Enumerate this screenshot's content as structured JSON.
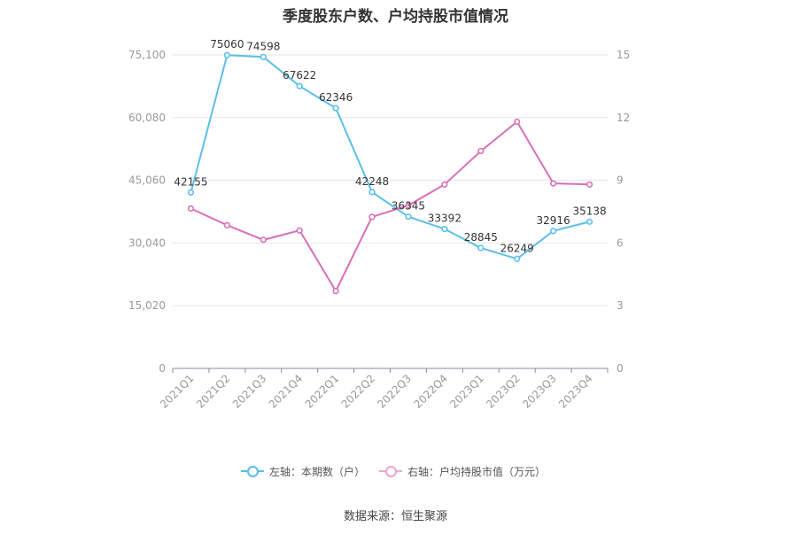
{
  "title": "季度股东户数、户均持股市值情况",
  "source": "数据来源：恒生聚源",
  "colors": {
    "left_series": "#5bbfe9",
    "right_series": "#d870b7",
    "axis": "#8a8aa0",
    "grid": "#e6e6e6",
    "tick_text": "#999999",
    "label_text": "#333333"
  },
  "chart_data": {
    "type": "line",
    "categories": [
      "2021Q1",
      "2021Q2",
      "2021Q3",
      "2021Q4",
      "2022Q1",
      "2022Q2",
      "2022Q3",
      "2022Q4",
      "2023Q1",
      "2023Q2",
      "2023Q3",
      "2023Q4"
    ],
    "left_axis": {
      "ticks": [
        0,
        15020,
        30040,
        45060,
        60080,
        75100
      ],
      "tick_labels": [
        "0",
        "15,020",
        "30,040",
        "45,060",
        "60,080",
        "75,100"
      ],
      "ylim": [
        0,
        75100
      ]
    },
    "right_axis": {
      "ticks": [
        0,
        3,
        6,
        9,
        12,
        15
      ],
      "tick_labels": [
        "0",
        "3",
        "6",
        "9",
        "12",
        "15"
      ],
      "ylim": [
        0,
        15
      ]
    },
    "series": [
      {
        "name": "左轴：本期数（户）",
        "axis": "left",
        "values": [
          42155,
          75060,
          74598,
          67622,
          62346,
          42248,
          36345,
          33392,
          28845,
          26249,
          32916,
          35138
        ],
        "data_labels": [
          "42155",
          "75060",
          "74598",
          "67622",
          "62346",
          "42248",
          "36345",
          "33392",
          "28845",
          "26249",
          "32916",
          "35138"
        ]
      },
      {
        "name": "右轴：户均持股市值（万元）",
        "axis": "right",
        "values": [
          7.65,
          6.85,
          6.15,
          6.6,
          3.7,
          7.25,
          7.8,
          8.8,
          10.4,
          11.8,
          8.85,
          8.8
        ]
      }
    ],
    "grid": true,
    "legend_position": "bottom"
  }
}
